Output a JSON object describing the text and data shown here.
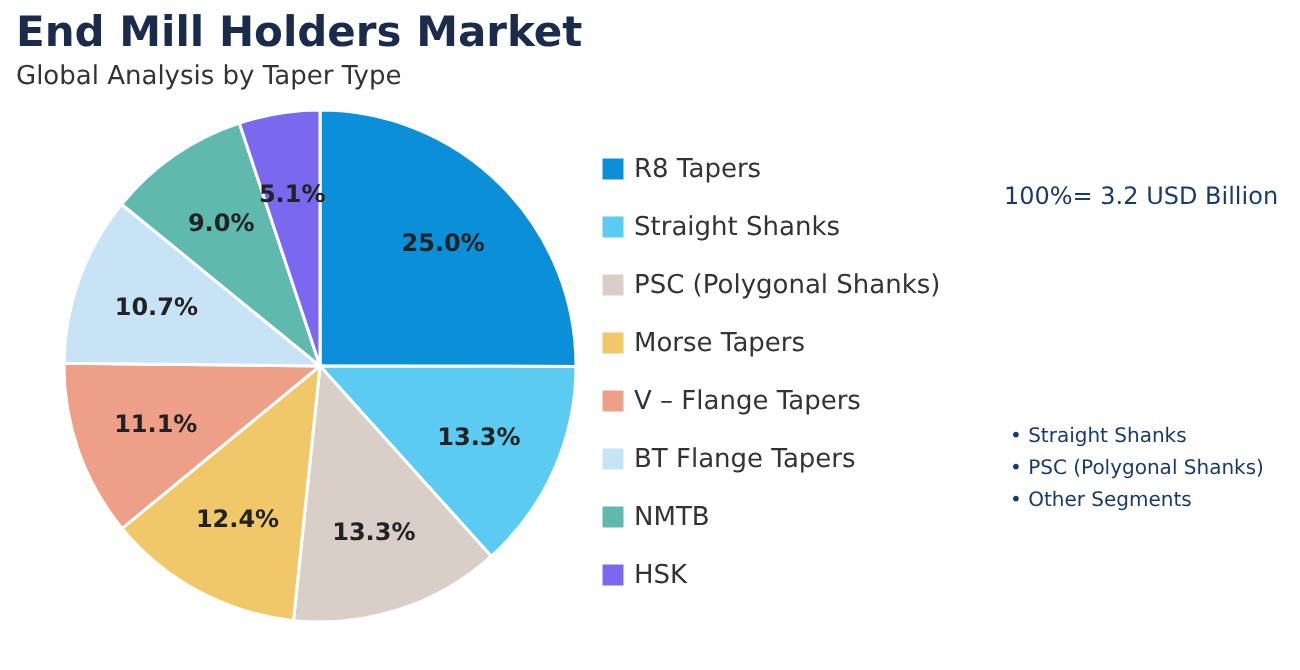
{
  "chart_data": {
    "type": "pie",
    "title": "End Mill Holders Market",
    "subtitle": "Global Analysis by Taper Type",
    "categories": [
      "R8 Tapers",
      "Straight Shanks",
      "PSC (Polygonal Shanks)",
      "Morse Tapers",
      "V – Flange Tapers",
      "BT Flange Tapers",
      "NMTB",
      "HSK"
    ],
    "values": [
      25.0,
      13.3,
      13.3,
      12.4,
      11.1,
      10.7,
      9.0,
      5.1
    ],
    "value_labels": [
      "25.0%",
      "13.3%",
      "13.3%",
      "12.4%",
      "11.1%",
      "10.7%",
      "9.0%",
      "5.1%"
    ],
    "colors": [
      "#0a8fd8",
      "#5ccbf2",
      "#d9cfc8",
      "#f0c86a",
      "#ee9f88",
      "#c8e3f5",
      "#5fb9ad",
      "#7b68ee"
    ],
    "legend": "right",
    "annotations": [
      "100%= 3.2 USD Billion",
      "• Straight Shanks",
      "• PSC (Polygonal Shanks)",
      "• Other Segments"
    ]
  }
}
